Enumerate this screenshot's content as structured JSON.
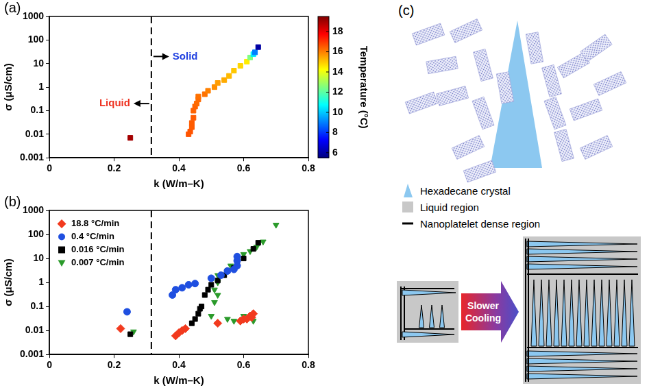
{
  "chart_data": [
    {
      "panel": "(a)",
      "type": "scatter",
      "x_label": "k (W/m–K)",
      "y_label": "σ (μS/cm)",
      "xlim": [
        0,
        0.8
      ],
      "xticks": [
        0,
        0.2,
        0.4,
        0.6,
        0.8
      ],
      "ylim": [
        0.001,
        1000
      ],
      "yticks": [
        0.001,
        0.01,
        0.1,
        1,
        10,
        100,
        1000
      ],
      "log": "y",
      "grid": false,
      "marker": "square",
      "x": [
        0.25,
        0.43,
        0.435,
        0.44,
        0.44,
        0.445,
        0.445,
        0.45,
        0.455,
        0.46,
        0.46,
        0.48,
        0.49,
        0.51,
        0.52,
        0.54,
        0.555,
        0.57,
        0.59,
        0.61,
        0.62,
        0.63,
        0.635,
        0.645
      ],
      "values": [
        0.007,
        0.01,
        0.013,
        0.02,
        0.03,
        0.05,
        0.1,
        0.15,
        0.2,
        0.3,
        0.4,
        0.5,
        0.7,
        1,
        1.5,
        2,
        3,
        5,
        8,
        12,
        18,
        25,
        30,
        50
      ],
      "temperature": [
        19,
        16.6,
        16.6,
        16.5,
        16.5,
        16.5,
        16.4,
        16.4,
        16.3,
        16.3,
        16.2,
        16.2,
        16,
        15.8,
        15.6,
        15.4,
        15.2,
        15,
        14.8,
        14.5,
        12.5,
        10.5,
        9,
        6
      ],
      "colorbar": {
        "label": "Temperature (°C)",
        "range": [
          5.5,
          19.5
        ],
        "ticks": [
          6,
          8,
          10,
          12,
          14,
          16,
          18
        ]
      },
      "vline": {
        "x": 0.315,
        "line_style": "dashed"
      },
      "annotations": [
        {
          "text": "Solid",
          "x": 0.37,
          "y": 20,
          "color": "#2040e0"
        },
        {
          "text": "Liquid",
          "x": 0.26,
          "y": 0.2,
          "color": "#ee3322"
        }
      ]
    },
    {
      "panel": "(b)",
      "type": "scatter",
      "x_label": "k (W/m–K)",
      "y_label": "σ (μS/cm)",
      "xlim": [
        0,
        0.8
      ],
      "xticks": [
        0,
        0.2,
        0.4,
        0.6,
        0.8
      ],
      "ylim": [
        0.001,
        1000
      ],
      "yticks": [
        0.001,
        0.01,
        0.1,
        1,
        10,
        100,
        1000
      ],
      "log": "y",
      "grid": false,
      "legend": "upper left",
      "vline": {
        "x": 0.315,
        "line_style": "dashed"
      },
      "series": [
        {
          "name": "18.8 °C/min",
          "color": "#f23a1e",
          "marker": "diamond",
          "x": [
            0.22,
            0.39,
            0.4,
            0.41,
            0.42,
            0.52,
            0.59,
            0.6,
            0.61,
            0.62,
            0.625,
            0.63
          ],
          "values": [
            0.012,
            0.006,
            0.008,
            0.01,
            0.012,
            0.02,
            0.025,
            0.03,
            0.03,
            0.04,
            0.035,
            0.05
          ]
        },
        {
          "name": "0.4 °C/min",
          "color": "#1f4fe0",
          "marker": "circle",
          "x": [
            0.24,
            0.38,
            0.39,
            0.41,
            0.43,
            0.45,
            0.5,
            0.53,
            0.55,
            0.57,
            0.58,
            0.58,
            0.58
          ],
          "values": [
            0.06,
            0.3,
            0.5,
            0.6,
            0.8,
            0.9,
            1.5,
            2,
            3,
            3.5,
            5,
            8,
            12
          ]
        },
        {
          "name": "0.016 °C/min",
          "color": "#000000",
          "marker": "square",
          "x": [
            0.25,
            0.44,
            0.45,
            0.46,
            0.465,
            0.47,
            0.48,
            0.49,
            0.5,
            0.52,
            0.54,
            0.55,
            0.57,
            0.58,
            0.6,
            0.63,
            0.645
          ],
          "values": [
            0.007,
            0.02,
            0.03,
            0.05,
            0.08,
            0.1,
            0.3,
            0.5,
            0.8,
            1.2,
            2,
            3,
            4,
            6,
            10,
            25,
            45
          ]
        },
        {
          "name": "0.007 °C/min",
          "color": "#2a9a2a",
          "marker": "triangle_down",
          "x": [
            0.26,
            0.5,
            0.51,
            0.52,
            0.51,
            0.52,
            0.52,
            0.55,
            0.56,
            0.58,
            0.6,
            0.62,
            0.64,
            0.66,
            0.7,
            0.55,
            0.57,
            0.6,
            0.61,
            0.63
          ],
          "values": [
            0.009,
            0.04,
            0.15,
            0.3,
            0.5,
            1,
            2,
            3,
            5,
            8,
            15,
            20,
            30,
            50,
            250,
            0.03,
            0.025,
            0.04,
            0.03,
            0.025
          ]
        }
      ]
    }
  ],
  "diagram": {
    "panel": "(c)",
    "legend": [
      {
        "label": "Hexadecane crystal",
        "color": "#8cc8f0"
      },
      {
        "label": "Liquid region",
        "color": "#c8c8c8"
      },
      {
        "label": "Nanoplatelet dense region",
        "color": "#000000"
      }
    ],
    "arrow_label": "Slower Cooling"
  }
}
